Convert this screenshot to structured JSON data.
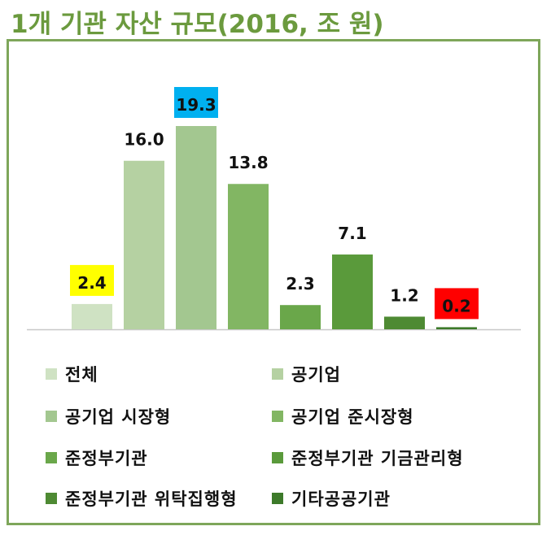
{
  "title": "1개 기관 자산 규모(2016, 조 원)",
  "chart_data": {
    "type": "bar",
    "title": "1개 기관 자산 규모(2016, 조 원)",
    "categories": [
      "전체",
      "공기업",
      "공기업 시장형",
      "공기업 준시장형",
      "준정부기관",
      "준정부기관 기금관리형",
      "준정부기관 위탁집행형",
      "기타공공기관"
    ],
    "values": [
      2.4,
      16.0,
      19.3,
      13.8,
      2.3,
      7.1,
      1.2,
      0.2
    ],
    "labels": [
      "2.4",
      "16.0",
      "19.3",
      "13.8",
      "2.3",
      "7.1",
      "1.2",
      "0.2"
    ],
    "bar_colors": [
      "#cfe2c3",
      "#b5d1a2",
      "#a3c790",
      "#82b663",
      "#6aa74a",
      "#5a9a3b",
      "#4e8a33",
      "#3d7a2a"
    ],
    "label_highlights": [
      "#ffff00",
      null,
      "#00b0f0",
      null,
      null,
      null,
      null,
      "#ff0000"
    ],
    "xlabel": "",
    "ylabel": "",
    "ylim": [
      0,
      19.3
    ],
    "grid": false,
    "legend_position": "bottom"
  }
}
